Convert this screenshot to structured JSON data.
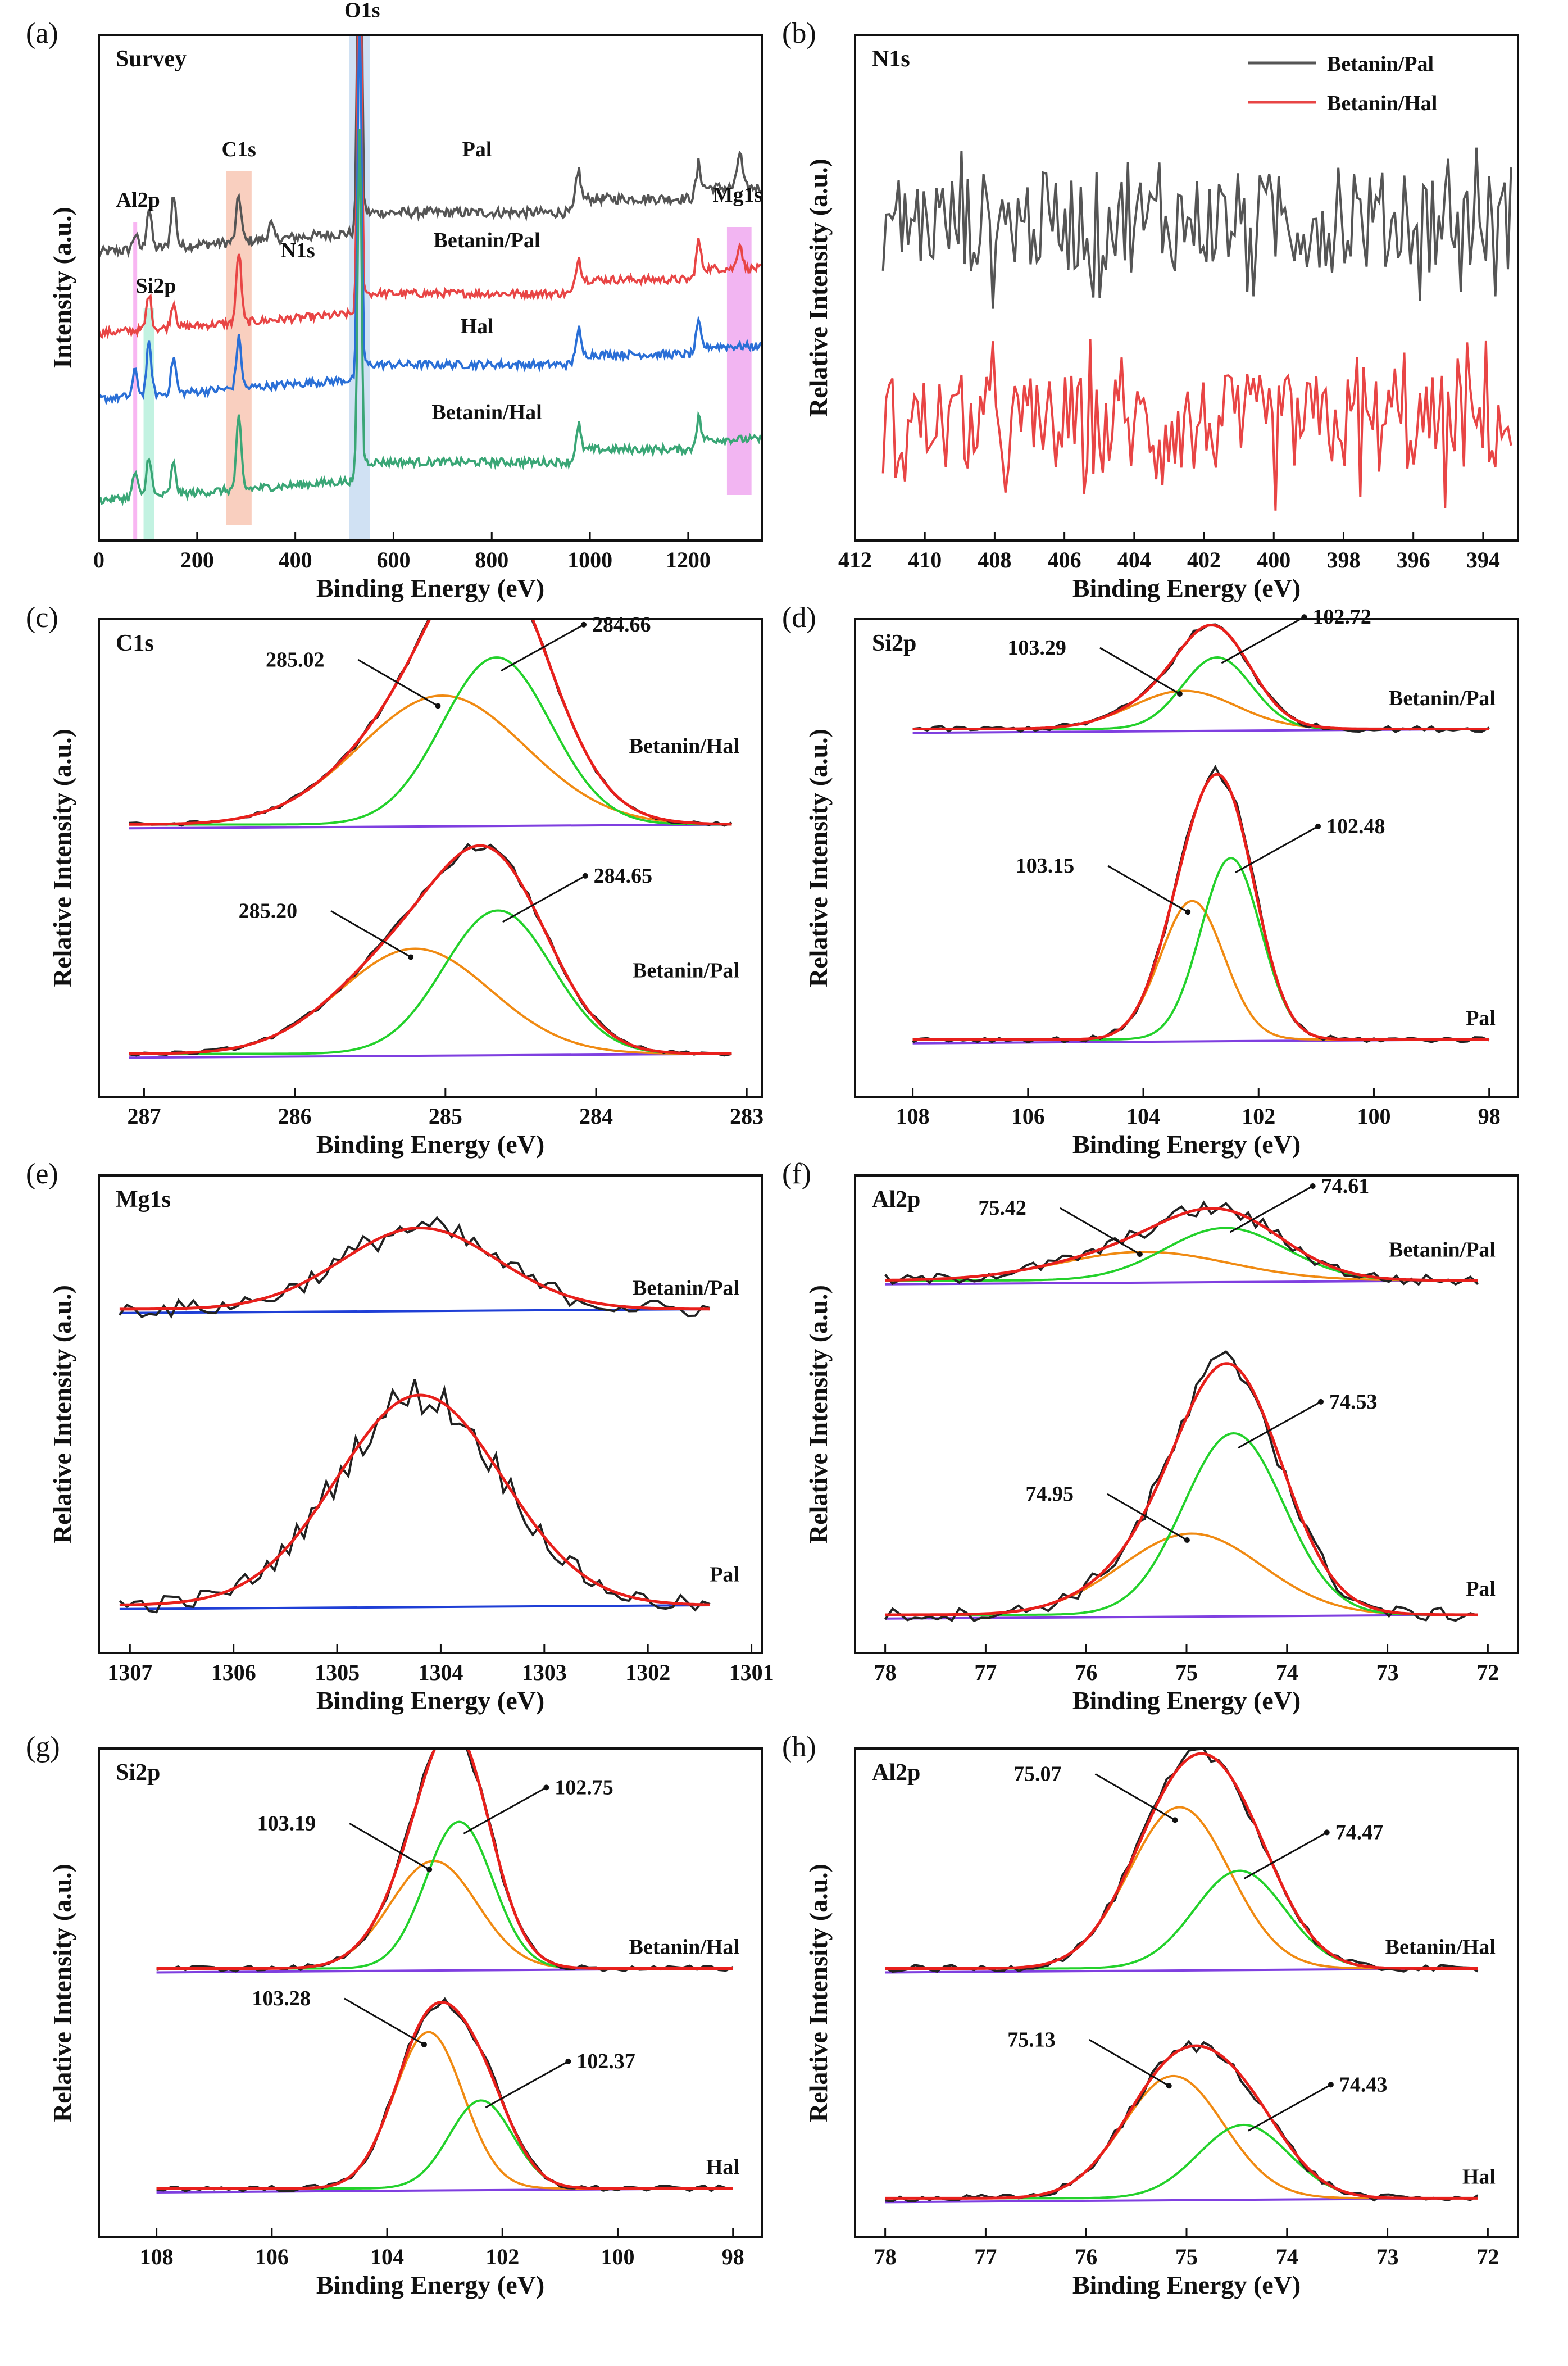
{
  "figure": {
    "background": "#ffffff",
    "axis_color": "#111111"
  },
  "chart_data": [
    {
      "type": "line",
      "panel": "(a)",
      "title": "Survey",
      "xlabel": "Binding Energy (eV)",
      "ylabel": "Intensity (a.u.)",
      "xlim": [
        0,
        1350
      ],
      "reverse": false,
      "xticks": [
        0,
        200,
        400,
        600,
        800,
        1000,
        1200
      ],
      "series": [
        {
          "name": "Pal",
          "color": "#555555",
          "offset": 0.61,
          "rise": 0.11,
          "noise": 0.01,
          "peaks": [
            [
              74,
              0.03
            ],
            [
              102,
              0.08
            ],
            [
              152,
              0.1
            ],
            [
              285,
              0.09
            ],
            [
              350,
              0.03
            ],
            [
              531,
              0.92
            ],
            [
              975,
              0.07
            ],
            [
              1220,
              0.05
            ],
            [
              1305,
              0.07
            ]
          ]
        },
        {
          "name": "Betanin/Pal",
          "color": "#e84545",
          "offset": 0.45,
          "rise": 0.11,
          "noise": 0.008,
          "peaks": [
            [
              102,
              0.07
            ],
            [
              152,
              0.05
            ],
            [
              285,
              0.14
            ],
            [
              531,
              0.82
            ],
            [
              975,
              0.06
            ],
            [
              1220,
              0.06
            ],
            [
              1305,
              0.05
            ]
          ]
        },
        {
          "name": "Hal",
          "color": "#2a6fd6",
          "offset": 0.32,
          "rise": 0.08,
          "noise": 0.008,
          "peaks": [
            [
              74,
              0.05
            ],
            [
              102,
              0.1
            ],
            [
              152,
              0.07
            ],
            [
              285,
              0.1
            ],
            [
              531,
              0.74
            ],
            [
              975,
              0.06
            ],
            [
              1220,
              0.05
            ]
          ]
        },
        {
          "name": "Betanin/Hal",
          "color": "#3aa676",
          "offset": 0.12,
          "rise": 0.1,
          "noise": 0.008,
          "peaks": [
            [
              74,
              0.05
            ],
            [
              102,
              0.08
            ],
            [
              152,
              0.06
            ],
            [
              285,
              0.14
            ],
            [
              531,
              0.7
            ],
            [
              975,
              0.06
            ],
            [
              1220,
              0.05
            ]
          ]
        }
      ],
      "labels": [
        {
          "text": "Pal",
          "x": 770,
          "y": 0.76
        },
        {
          "text": "Betanin/Pal",
          "x": 790,
          "y": 0.58
        },
        {
          "text": "Hal",
          "x": 770,
          "y": 0.41
        },
        {
          "text": "Betanin/Hal",
          "x": 790,
          "y": 0.24
        }
      ],
      "highlights": [
        {
          "name": "Al2p",
          "center": 74,
          "width": 8,
          "color": "#f27ae8",
          "from": 0.0,
          "to": 0.63,
          "label_x": 35,
          "label_y": 0.66
        },
        {
          "name": "Si2p",
          "center": 102,
          "width": 22,
          "color": "#8fe8c8",
          "from": 0.0,
          "to": 0.46,
          "label_x": 75,
          "label_y": 0.49
        },
        {
          "name": "C1s",
          "center": 285,
          "width": 52,
          "color": "#f4a88a",
          "from": 0.03,
          "to": 0.73,
          "label_x": 250,
          "label_y": 0.76
        },
        {
          "name": "N1s",
          "center": 400,
          "width": 0,
          "color": "none",
          "from": 0,
          "to": 0,
          "label_x": 370,
          "label_y": 0.56
        },
        {
          "name": "O1s",
          "center": 531,
          "width": 42,
          "color": "#a9c8ea",
          "from": 0.0,
          "to": 1.0,
          "label_x": 500,
          "label_y": 1.035
        },
        {
          "name": "Mg1s",
          "center": 1304,
          "width": 50,
          "color": "#e879e8",
          "from": 0.09,
          "to": 0.62,
          "label_x": 1250,
          "label_y": 0.67
        }
      ]
    },
    {
      "type": "line",
      "panel": "(b)",
      "title": "N1s",
      "xlabel": "Binding Energy (eV)",
      "ylabel": "Relative Intensity (a.u.)",
      "xlim": [
        412,
        393
      ],
      "reverse": true,
      "xticks": [
        412,
        410,
        408,
        406,
        404,
        402,
        400,
        398,
        396,
        394
      ],
      "series": [
        {
          "name": "Betanin/Pal",
          "color": "#555555",
          "base": 0.63,
          "noise": 0.1,
          "start": 411.2,
          "end": 393.2
        },
        {
          "name": "Betanin/Hal",
          "color": "#e84545",
          "base": 0.23,
          "noise": 0.1,
          "start": 411.2,
          "end": 393.2
        }
      ],
      "legend": "top-right"
    },
    {
      "type": "line",
      "panel": "(c)",
      "title": "C1s",
      "xlabel": "Binding Energy (eV)",
      "ylabel": "Relative Intensity (a.u.)",
      "xlim": [
        287.3,
        282.9
      ],
      "reverse": true,
      "xticks": [
        287,
        286,
        285,
        284,
        283
      ],
      "fit_range": [
        287.1,
        283.1
      ],
      "stacks": [
        {
          "label": "Betanin/Hal",
          "baseline": 0.57,
          "noise": 0.004,
          "components": [
            {
              "center": 285.02,
              "amp": 0.27,
              "width": 0.55
            },
            {
              "center": 284.66,
              "amp": 0.35,
              "width": 0.36
            }
          ],
          "annotations": [
            {
              "text": "285.02",
              "at": 0
            },
            {
              "text": "284.66",
              "at": 1
            }
          ],
          "label_y": 0.72
        },
        {
          "label": "Betanin/Pal",
          "baseline": 0.09,
          "noise": 0.004,
          "components": [
            {
              "center": 285.2,
              "amp": 0.22,
              "width": 0.5
            },
            {
              "center": 284.65,
              "amp": 0.3,
              "width": 0.36
            }
          ],
          "annotations": [
            {
              "text": "285.20",
              "at": 0
            },
            {
              "text": "284.65",
              "at": 1
            }
          ],
          "label_y": 0.25
        }
      ]
    },
    {
      "type": "line",
      "panel": "(d)",
      "title": "Si2p",
      "xlabel": "Binding Energy (eV)",
      "ylabel": "Relative Intensity (a.u.)",
      "xlim": [
        109,
        97.5
      ],
      "reverse": true,
      "xticks": [
        108,
        106,
        104,
        102,
        100,
        98
      ],
      "fit_range": [
        108,
        98
      ],
      "stacks": [
        {
          "label": "Betanin/Pal",
          "baseline": 0.77,
          "noise": 0.006,
          "components": [
            {
              "center": 103.29,
              "amp": 0.08,
              "width": 0.9
            },
            {
              "center": 102.72,
              "amp": 0.15,
              "width": 0.6
            }
          ],
          "annotations": [
            {
              "text": "103.29",
              "at": 0
            },
            {
              "text": "102.72",
              "at": 1
            }
          ],
          "label_y": 0.82
        },
        {
          "label": "Pal",
          "baseline": 0.12,
          "noise": 0.006,
          "components": [
            {
              "center": 103.15,
              "amp": 0.29,
              "width": 0.55
            },
            {
              "center": 102.48,
              "amp": 0.38,
              "width": 0.52
            }
          ],
          "annotations": [
            {
              "text": "103.15",
              "at": 0
            },
            {
              "text": "102.48",
              "at": 1
            }
          ],
          "label_y": 0.15
        }
      ]
    },
    {
      "type": "line",
      "panel": "(e)",
      "title": "Mg1s",
      "xlabel": "Binding Energy (eV)",
      "ylabel": "Relative Intensity (a.u.)",
      "xlim": [
        1307.3,
        1300.9
      ],
      "reverse": true,
      "xticks": [
        1307,
        1306,
        1305,
        1304,
        1303,
        1302,
        1301
      ],
      "fit_range": [
        1307.1,
        1301.4
      ],
      "stacks": [
        {
          "label": "Betanin/Pal",
          "baseline": 0.72,
          "noise": 0.018,
          "fit_color": "#e8201c",
          "baseline_color": "#1f3fd6",
          "components": [
            {
              "center": 1304.2,
              "amp": 0.17,
              "width": 0.75
            }
          ],
          "annotations": [],
          "label_y": 0.75
        },
        {
          "label": "Pal",
          "baseline": 0.1,
          "noise": 0.018,
          "fit_color": "#e8201c",
          "baseline_color": "#1f3fd6",
          "components": [
            {
              "center": 1304.2,
              "amp": 0.44,
              "width": 0.8
            }
          ],
          "annotations": [],
          "label_y": 0.15
        }
      ]
    },
    {
      "type": "line",
      "panel": "(f)",
      "title": "Al2p",
      "xlabel": "Binding Energy (eV)",
      "ylabel": "Relative Intensity (a.u.)",
      "xlim": [
        78.3,
        71.7
      ],
      "reverse": true,
      "xticks": [
        78,
        77,
        76,
        75,
        74,
        73,
        72
      ],
      "fit_range": [
        78,
        72.1
      ],
      "stacks": [
        {
          "label": "Betanin/Pal",
          "baseline": 0.78,
          "noise": 0.012,
          "components": [
            {
              "center": 75.42,
              "amp": 0.06,
              "width": 0.85
            },
            {
              "center": 74.61,
              "amp": 0.11,
              "width": 0.6
            }
          ],
          "annotations": [
            {
              "text": "75.42",
              "at": 0
            },
            {
              "text": "74.61",
              "at": 1
            }
          ],
          "label_y": 0.83
        },
        {
          "label": "Pal",
          "baseline": 0.08,
          "noise": 0.014,
          "components": [
            {
              "center": 74.95,
              "amp": 0.17,
              "width": 0.7
            },
            {
              "center": 74.53,
              "amp": 0.38,
              "width": 0.5
            }
          ],
          "annotations": [
            {
              "text": "74.95",
              "at": 0
            },
            {
              "text": "74.53",
              "at": 1
            }
          ],
          "label_y": 0.12
        }
      ]
    },
    {
      "type": "line",
      "panel": "(g)",
      "title": "Si2p",
      "xlabel": "Binding Energy (eV)",
      "ylabel": "Relative Intensity (a.u.)",
      "xlim": [
        109,
        97.5
      ],
      "reverse": true,
      "xticks": [
        108,
        106,
        104,
        102,
        100,
        98
      ],
      "fit_range": [
        108,
        98
      ],
      "stacks": [
        {
          "label": "Betanin/Hal",
          "baseline": 0.55,
          "noise": 0.006,
          "components": [
            {
              "center": 103.19,
              "amp": 0.22,
              "width": 0.75
            },
            {
              "center": 102.75,
              "amp": 0.3,
              "width": 0.58
            }
          ],
          "annotations": [
            {
              "text": "103.19",
              "at": 0
            },
            {
              "text": "102.75",
              "at": 1
            }
          ],
          "label_y": 0.58
        },
        {
          "label": "Hal",
          "baseline": 0.1,
          "noise": 0.006,
          "components": [
            {
              "center": 103.28,
              "amp": 0.32,
              "width": 0.6
            },
            {
              "center": 102.37,
              "amp": 0.18,
              "width": 0.55
            }
          ],
          "annotations": [
            {
              "text": "103.28",
              "at": 0
            },
            {
              "text": "102.37",
              "at": 1
            }
          ],
          "label_y": 0.13
        }
      ]
    },
    {
      "type": "line",
      "panel": "(h)",
      "title": "Al2p",
      "xlabel": "Binding Energy (eV)",
      "ylabel": "Relative Intensity (a.u.)",
      "xlim": [
        78.3,
        71.7
      ],
      "reverse": true,
      "xticks": [
        78,
        77,
        76,
        75,
        74,
        73,
        72
      ],
      "fit_range": [
        78,
        72.1
      ],
      "stacks": [
        {
          "label": "Betanin/Hal",
          "baseline": 0.55,
          "noise": 0.007,
          "components": [
            {
              "center": 75.07,
              "amp": 0.33,
              "width": 0.5
            },
            {
              "center": 74.47,
              "amp": 0.2,
              "width": 0.45
            }
          ],
          "annotations": [
            {
              "text": "75.07",
              "at": 0
            },
            {
              "text": "74.47",
              "at": 1
            }
          ],
          "label_y": 0.58
        },
        {
          "label": "Hal",
          "baseline": 0.08,
          "noise": 0.007,
          "components": [
            {
              "center": 75.13,
              "amp": 0.25,
              "width": 0.5
            },
            {
              "center": 74.43,
              "amp": 0.15,
              "width": 0.45
            }
          ],
          "annotations": [
            {
              "text": "75.13",
              "at": 0
            },
            {
              "text": "74.43",
              "at": 1
            }
          ],
          "label_y": 0.11
        }
      ]
    }
  ],
  "fit_colors": {
    "envelope": "#e8201c",
    "component_a": "#f08a12",
    "component_b": "#23d12b",
    "baseline": "#7f3fe0",
    "raw": "#222222"
  }
}
